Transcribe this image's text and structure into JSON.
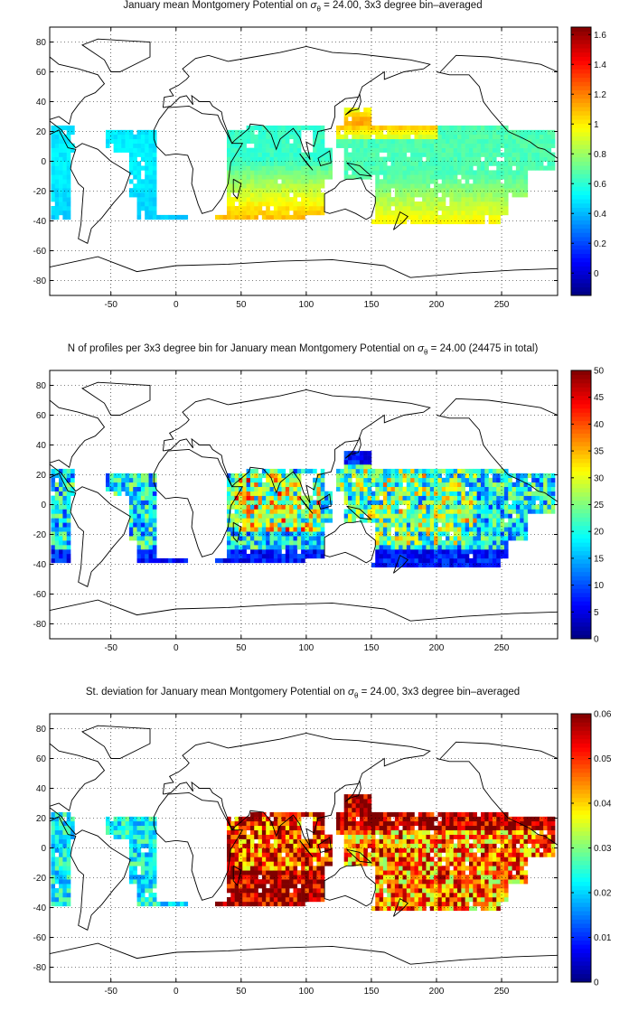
{
  "panels": [
    {
      "title_pre": "January mean Montgomery Potential on ",
      "title_sym": "σ",
      "title_sub": "θ",
      "title_post": " = 24.00, 3x3 degree bin–averaged",
      "colorbar": {
        "min": -0.15,
        "max": 1.65,
        "ticks": [
          "0",
          "0.2",
          "0.4",
          "0.6",
          "0.8",
          "1",
          "1.2",
          "1.4",
          "1.6"
        ],
        "tick_values": [
          0,
          0.2,
          0.4,
          0.6,
          0.8,
          1.0,
          1.2,
          1.4,
          1.6
        ]
      }
    },
    {
      "title_pre": "N of profiles per 3x3 degree bin for January mean Montgomery Potential on ",
      "title_sym": "σ",
      "title_sub": "θ",
      "title_post": " = 24.00 (24475 in total)",
      "colorbar": {
        "min": 0,
        "max": 50,
        "ticks": [
          "0",
          "5",
          "10",
          "15",
          "20",
          "25",
          "30",
          "35",
          "40",
          "45",
          "50"
        ],
        "tick_values": [
          0,
          5,
          10,
          15,
          20,
          25,
          30,
          35,
          40,
          45,
          50
        ]
      }
    },
    {
      "title_pre": "St. deviation for January mean Montgomery Potential on ",
      "title_sym": "σ",
      "title_sub": "θ",
      "title_post": " = 24.00, 3x3 degree bin–averaged",
      "colorbar": {
        "min": 0,
        "max": 0.06,
        "ticks": [
          "0",
          "0.01",
          "0.02",
          "0.03",
          "0.04",
          "0.05",
          "0.06"
        ],
        "tick_values": [
          0,
          0.01,
          0.02,
          0.03,
          0.04,
          0.05,
          0.06
        ]
      }
    }
  ],
  "map_axes": {
    "x_ticks": [
      "-50",
      "0",
      "50",
      "100",
      "150",
      "200",
      "250"
    ],
    "x_tick_values": [
      -50,
      0,
      50,
      100,
      150,
      200,
      250
    ],
    "y_ticks": [
      "-80",
      "-60",
      "-40",
      "-20",
      "0",
      "20",
      "40",
      "60",
      "80"
    ],
    "y_tick_values": [
      -80,
      -60,
      -40,
      -20,
      0,
      20,
      40,
      60,
      80
    ],
    "xlim": [
      -97,
      293
    ],
    "ylim": [
      -90,
      90
    ],
    "grid": "dotted"
  },
  "colormap": "jet"
}
